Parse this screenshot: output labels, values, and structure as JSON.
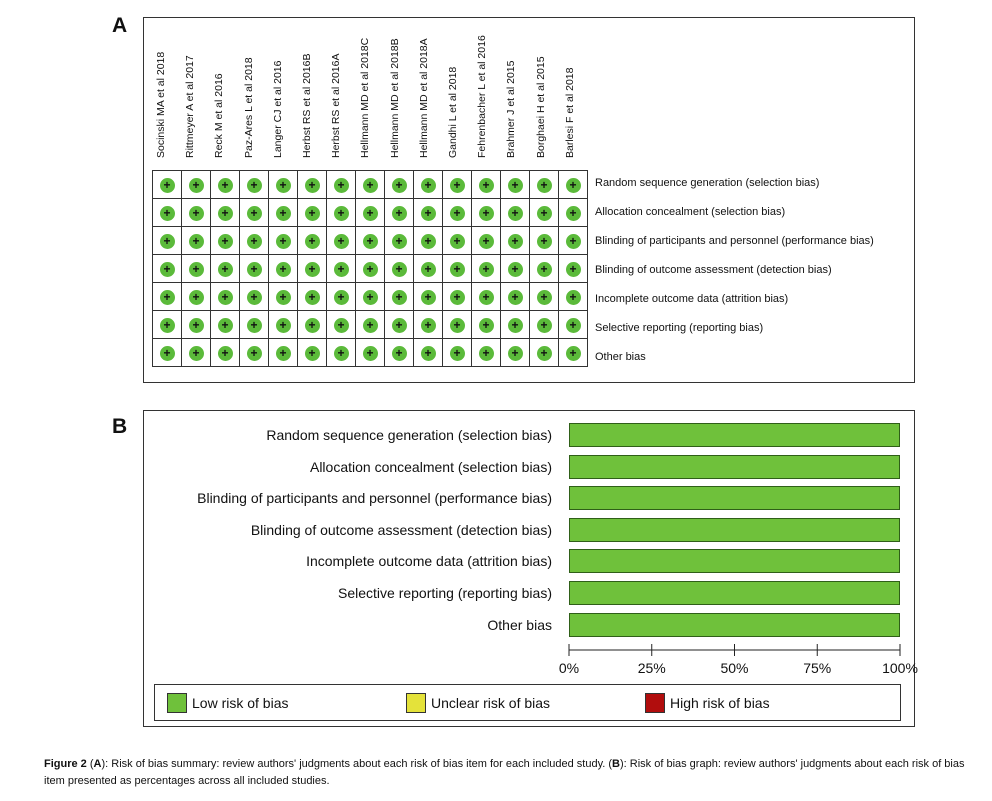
{
  "panels": {
    "a": "A",
    "b": "B"
  },
  "colors": {
    "low": "#6fc13b",
    "unclear": "#e4e23a",
    "high": "#b10d0d"
  },
  "chart_data": [
    {
      "type": "table",
      "panel": "A",
      "studies": [
        "Socinski MA et al 2018",
        "Rittmeyer A et al 2017",
        "Reck M et al 2016",
        "Paz-Ares L et al 2018",
        "Langer CJ et al 2016",
        "Herbst RS et al 2016B",
        "Herbst RS et al 2016A",
        "Hellmann MD et al 2018C",
        "Hellmann MD et al 2018B",
        "Hellmann MD et al 2018A",
        "Gandhi L et al 2018",
        "Fehrenbacher L et al 2016",
        "Brahmer J et al 2015",
        "Borghaei H et al 2015",
        "Barlesi F et al 2018"
      ],
      "domains": [
        "Random sequence generation (selection bias)",
        "Allocation concealment (selection bias)",
        "Blinding of participants and personnel (performance bias)",
        "Blinding of outcome assessment (detection bias)",
        "Incomplete outcome data (attrition bias)",
        "Selective reporting (reporting bias)",
        "Other bias"
      ],
      "judgment_symbol": "+",
      "judgments": "all low risk (+) for every study and domain"
    },
    {
      "type": "bar",
      "panel": "B",
      "orientation": "horizontal-stacked",
      "categories": [
        "Random sequence generation (selection bias)",
        "Allocation concealment (selection bias)",
        "Blinding of participants and personnel (performance bias)",
        "Blinding of outcome assessment (detection bias)",
        "Incomplete outcome data (attrition bias)",
        "Selective reporting (reporting bias)",
        "Other bias"
      ],
      "series": [
        {
          "name": "Low risk of bias",
          "values": [
            100,
            100,
            100,
            100,
            100,
            100,
            100
          ]
        },
        {
          "name": "Unclear risk of bias",
          "values": [
            0,
            0,
            0,
            0,
            0,
            0,
            0
          ]
        },
        {
          "name": "High risk of bias",
          "values": [
            0,
            0,
            0,
            0,
            0,
            0,
            0
          ]
        }
      ],
      "xlim": [
        0,
        100
      ],
      "ticks": [
        "0%",
        "25%",
        "50%",
        "75%",
        "100%"
      ],
      "legend_position": "bottom"
    }
  ],
  "caption": {
    "figure": "Figure 2",
    "a_letter": "A",
    "a_text": "): Risk of bias summary: review authors' judgments about each risk of bias item for each included study. (",
    "b_letter": "B",
    "b_text": "): Risk of bias graph: review authors' judgments about each risk of bias item presented as percentages across all included studies."
  }
}
